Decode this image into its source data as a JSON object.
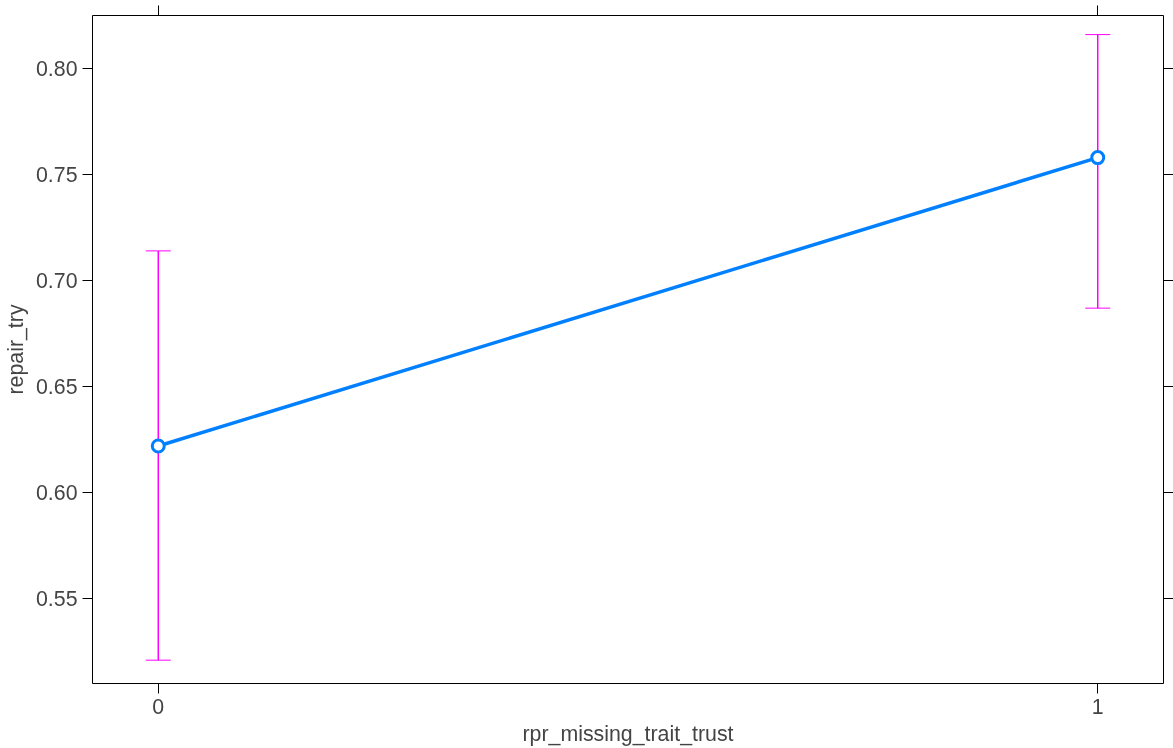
{
  "chart_data": {
    "type": "line",
    "xlabel": "rpr_missing_trait_trust",
    "ylabel": "repair_try",
    "x": [
      0,
      1
    ],
    "series": [
      {
        "color": "#0080ff",
        "values": [
          0.622,
          0.758
        ],
        "errors": [
          [
            0.521,
            0.714
          ],
          [
            0.687,
            0.816
          ]
        ]
      }
    ],
    "xlim": [
      -0.07,
      1.07
    ],
    "xticks": [
      0,
      1
    ],
    "ylim": [
      0.51,
      0.825
    ],
    "yticks": [
      {
        "value": 0.55,
        "label": "0.55"
      },
      {
        "value": 0.6,
        "label": "0.60"
      },
      {
        "value": 0.65,
        "label": "0.65"
      },
      {
        "value": 0.7,
        "label": "0.70"
      },
      {
        "value": 0.75,
        "label": "0.75"
      },
      {
        "value": 0.8,
        "label": "0.80"
      }
    ],
    "marker": "circle",
    "line_style": "solid",
    "grid": false
  }
}
